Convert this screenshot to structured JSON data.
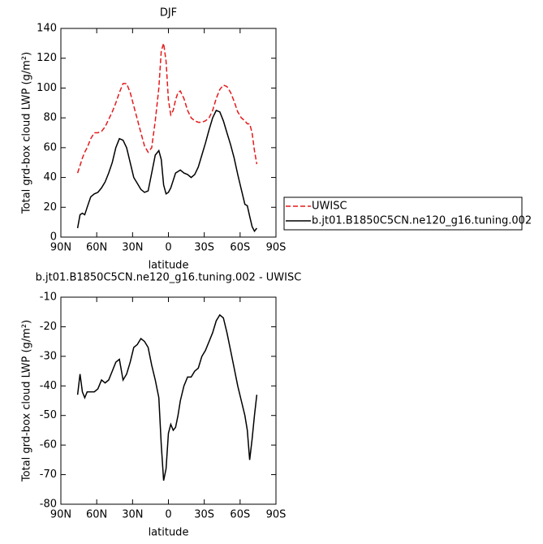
{
  "chart_data": [
    {
      "type": "line",
      "title": "DJF",
      "xlabel": "latitude",
      "ylabel": "Total grd-box cloud LWP (g/m²)",
      "xlim": [
        90,
        -90
      ],
      "xticks": [
        {
          "value": 90,
          "label": "90N"
        },
        {
          "value": 60,
          "label": "60N"
        },
        {
          "value": 30,
          "label": "30N"
        },
        0,
        {
          "value": -30,
          "label": "30S"
        },
        {
          "value": -60,
          "label": "60S"
        },
        {
          "value": -90,
          "label": "90S"
        }
      ],
      "ylim": [
        0,
        140
      ],
      "yticks": [
        0,
        20,
        40,
        60,
        80,
        100,
        120,
        140
      ],
      "x": [
        76,
        74,
        72,
        70,
        68,
        65,
        62,
        59,
        56,
        53,
        50,
        47,
        44,
        41,
        38,
        35,
        32,
        29,
        26,
        23,
        20,
        17,
        14,
        11,
        8,
        6,
        4,
        2,
        0,
        -2,
        -4,
        -6,
        -8,
        -10,
        -13,
        -16,
        -19,
        -22,
        -25,
        -28,
        -31,
        -34,
        -37,
        -40,
        -43,
        -46,
        -49,
        -52,
        -55,
        -58,
        -61,
        -64,
        -66,
        -68,
        -70,
        -72,
        -74
      ],
      "series": [
        {
          "name": "UWISC",
          "color": "#e41a1c",
          "dash": true,
          "values": [
            43,
            48,
            53,
            57,
            60,
            66,
            70,
            70,
            71,
            74,
            79,
            84,
            90,
            97,
            103,
            103,
            97,
            88,
            79,
            70,
            61,
            57,
            60,
            78,
            100,
            125,
            130,
            118,
            92,
            82,
            85,
            92,
            97,
            98,
            93,
            85,
            80,
            78,
            77,
            77,
            78,
            80,
            85,
            93,
            99,
            102,
            101,
            97,
            91,
            84,
            80,
            78,
            76,
            76,
            70,
            58,
            49
          ]
        },
        {
          "name": "b.jt01.B1850C5CN.ne120_g16.tuning.002",
          "color": "#000000",
          "dash": false,
          "values": [
            6,
            15,
            16,
            15,
            20,
            27,
            29,
            30,
            33,
            37,
            43,
            50,
            60,
            66,
            65,
            60,
            50,
            40,
            36,
            32,
            30,
            31,
            43,
            55,
            58,
            52,
            35,
            29,
            30,
            33,
            38,
            43,
            44,
            45,
            43,
            42,
            40,
            42,
            47,
            55,
            63,
            72,
            80,
            85,
            84,
            78,
            70,
            62,
            53,
            42,
            32,
            22,
            21,
            14,
            7,
            4,
            6
          ]
        }
      ]
    },
    {
      "type": "line",
      "title": "b.jt01.B1850C5CN.ne120_g16.tuning.002 - UWISC",
      "xlabel": "latitude",
      "ylabel": "Total grd-box cloud LWP (g/m²)",
      "xlim": [
        90,
        -90
      ],
      "xticks": [
        {
          "value": 90,
          "label": "90N"
        },
        {
          "value": 60,
          "label": "60N"
        },
        {
          "value": 30,
          "label": "30N"
        },
        0,
        {
          "value": -30,
          "label": "30S"
        },
        {
          "value": -60,
          "label": "60S"
        },
        {
          "value": -90,
          "label": "90S"
        }
      ],
      "ylim": [
        -80,
        -10
      ],
      "yticks": [
        -80,
        -70,
        -60,
        -50,
        -40,
        -30,
        -20,
        -10
      ],
      "x": [
        76,
        74,
        72,
        70,
        68,
        65,
        62,
        59,
        56,
        53,
        50,
        47,
        44,
        41,
        38,
        35,
        32,
        29,
        26,
        23,
        20,
        17,
        14,
        11,
        8,
        6,
        4,
        2,
        0,
        -2,
        -4,
        -6,
        -8,
        -10,
        -13,
        -16,
        -19,
        -22,
        -25,
        -28,
        -31,
        -34,
        -37,
        -40,
        -43,
        -46,
        -49,
        -52,
        -55,
        -58,
        -61,
        -64,
        -66,
        -68,
        -70,
        -72,
        -74
      ],
      "series": [
        {
          "color": "#000000",
          "dash": false,
          "values": [
            -43,
            -36,
            -42,
            -44,
            -42,
            -42,
            -42,
            -41,
            -38,
            -39,
            -38,
            -35,
            -32,
            -31,
            -38,
            -36,
            -32,
            -27,
            -26,
            -24,
            -25,
            -27,
            -33,
            -38,
            -44,
            -60,
            -72,
            -68,
            -56,
            -53,
            -55,
            -54,
            -50,
            -45,
            -40,
            -37,
            -37,
            -35,
            -34,
            -30,
            -28,
            -25,
            -22,
            -18,
            -16,
            -17,
            -22,
            -28,
            -34,
            -40,
            -45,
            -50,
            -55,
            -65,
            -58,
            -50,
            -43
          ]
        }
      ]
    }
  ]
}
